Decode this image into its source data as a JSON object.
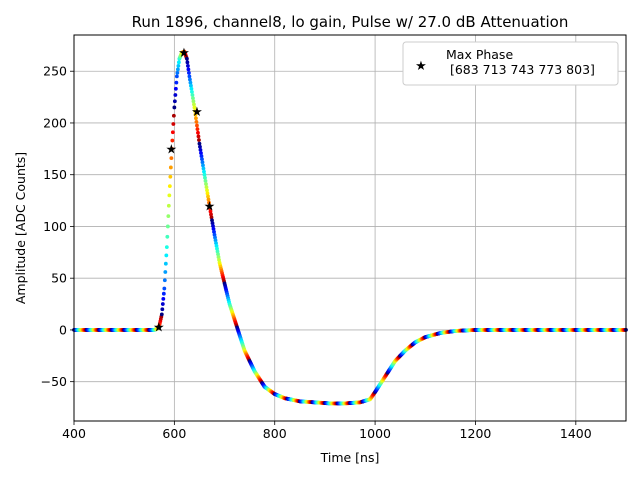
{
  "chart_data": {
    "type": "scatter",
    "title": "Run 1896, channel8, lo gain, Pulse w/ 27.0 dB Attenuation",
    "xlabel": "Time [ns]",
    "ylabel": "Amplitude [ADC Counts]",
    "xlim": [
      400,
      1500
    ],
    "ylim": [
      -88,
      285
    ],
    "xticks": [
      400,
      600,
      800,
      1000,
      1200,
      1400
    ],
    "yticks": [
      -50,
      0,
      50,
      100,
      150,
      200,
      250
    ],
    "grid": true,
    "legend_position": "top-right",
    "colormap": "jet",
    "pulse_trace": {
      "x": [
        400,
        560,
        565,
        570,
        575,
        580,
        585,
        590,
        595,
        600,
        605,
        610,
        615,
        620,
        625,
        630,
        640,
        650,
        660,
        670,
        680,
        690,
        700,
        710,
        720,
        730,
        740,
        760,
        780,
        800,
        820,
        850,
        880,
        910,
        940,
        970,
        990,
        1000,
        1020,
        1040,
        1060,
        1080,
        1100,
        1130,
        1160,
        1200,
        1250,
        1300,
        1400,
        1500
      ],
      "y": [
        0,
        0,
        1,
        4,
        15,
        40,
        80,
        130,
        175,
        215,
        245,
        262,
        268,
        269,
        262,
        245,
        215,
        180,
        150,
        120,
        92,
        65,
        45,
        25,
        10,
        -5,
        -20,
        -40,
        -55,
        -62,
        -66,
        -69,
        -70,
        -71,
        -71,
        -70,
        -67,
        -60,
        -45,
        -30,
        -20,
        -12,
        -7,
        -3,
        -1,
        0,
        0,
        0,
        0,
        0
      ]
    },
    "markers": {
      "name": "Max Phase\n [683 713 743 773 803]",
      "x": [
        569,
        594,
        619,
        645,
        670
      ],
      "y": [
        3,
        175,
        268,
        211,
        120
      ]
    }
  }
}
